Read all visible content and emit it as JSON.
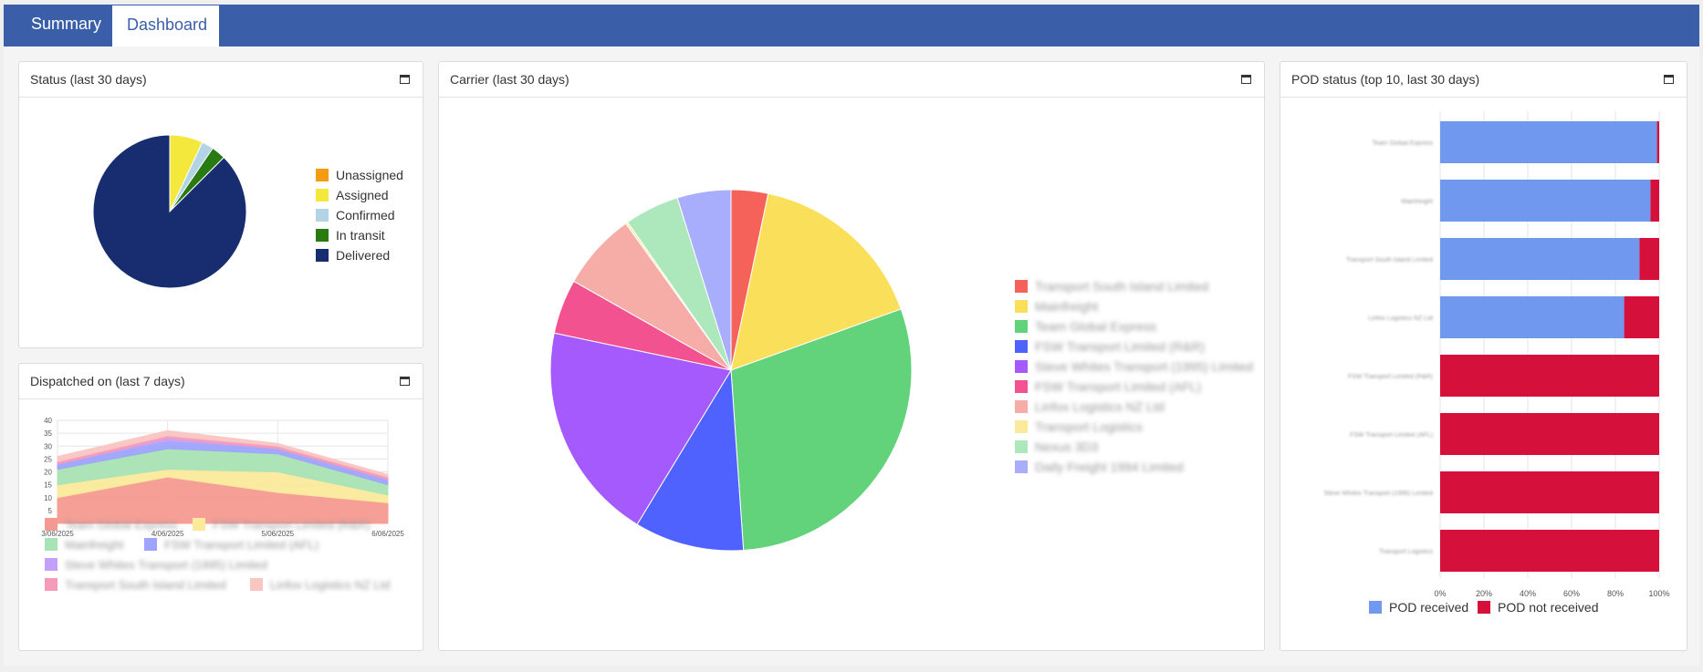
{
  "tabs": [
    {
      "label": "Summary"
    },
    {
      "label": "Dashboard"
    }
  ],
  "panels": {
    "status": {
      "title": "Status (last 30 days)"
    },
    "carrier": {
      "title": "Carrier (last 30 days)"
    },
    "pod": {
      "title": "POD status (top 10, last 30 days)"
    },
    "dispatched": {
      "title": "Dispatched on (last 7 days)"
    }
  },
  "colors": {
    "brand": "#3a5ea8",
    "pod_received": "#6f98ee",
    "pod_not_received": "#d5103a"
  },
  "chart_data": [
    {
      "id": "status",
      "type": "pie",
      "series": [
        {
          "name": "Unassigned",
          "value": 0,
          "color": "#f39c12"
        },
        {
          "name": "Assigned",
          "value": 7,
          "color": "#f3e83b"
        },
        {
          "name": "Confirmed",
          "value": 2.5,
          "color": "#b2d4e6"
        },
        {
          "name": "In transit",
          "value": 3,
          "color": "#2a7a12"
        },
        {
          "name": "Delivered",
          "value": 87.5,
          "color": "#172d70"
        }
      ],
      "legend": "right"
    },
    {
      "id": "carrier",
      "type": "pie",
      "series": [
        {
          "name": "Transport South Island Limited",
          "value": 3.3,
          "color": "#f5625a"
        },
        {
          "name": "Mainfreight",
          "value": 16.2,
          "color": "#fae05a"
        },
        {
          "name": "Team Global Express",
          "value": 29.4,
          "color": "#62d37b"
        },
        {
          "name": "FSW Transport Limited (R&R)",
          "value": 9.8,
          "color": "#4f62fe"
        },
        {
          "name": "Steve Whites Transport (1995) Limited",
          "value": 19.6,
          "color": "#a45afc"
        },
        {
          "name": "FSW Transport Limited (AFL)",
          "value": 4.9,
          "color": "#f25390"
        },
        {
          "name": "Linfox Logistics NZ Ltd",
          "value": 6.9,
          "color": "#f6aca7"
        },
        {
          "name": "Transport Logistics",
          "value": 0.2,
          "color": "#fbea9c"
        },
        {
          "name": "Nexus 3D3",
          "value": 4.9,
          "color": "#ade8bd"
        },
        {
          "name": "Daily Freight 1994 Limited",
          "value": 4.8,
          "color": "#a9aefc"
        }
      ],
      "legend": "right"
    },
    {
      "id": "pod",
      "type": "bar",
      "orientation": "horizontal",
      "stacked": true,
      "categories": [
        "Team Global Express",
        "Mainfreight",
        "Transport South Island Limited",
        "Linfox Logistics NZ Ltd",
        "FSW Transport Limited (R&R)",
        "FSW Transport Limited (AFL)",
        "Steve Whites Transport (1995) Limited",
        "Transport Logistics"
      ],
      "series": [
        {
          "name": "POD received",
          "values": [
            99,
            96,
            91,
            84,
            0,
            0,
            0,
            0
          ],
          "color": "#6f98ee"
        },
        {
          "name": "POD not received",
          "values": [
            1,
            4,
            9,
            16,
            100,
            100,
            100,
            100
          ],
          "color": "#d5103a"
        }
      ],
      "xticks": [
        "0%",
        "20%",
        "40%",
        "60%",
        "80%",
        "100%"
      ],
      "xlim": [
        0,
        100
      ],
      "grid": true,
      "legend": "bottom"
    },
    {
      "id": "dispatched",
      "type": "area",
      "stacked": true,
      "x": [
        "3/06/2025",
        "4/06/2025",
        "5/06/2025",
        "6/06/2025"
      ],
      "yticks": [
        0,
        5,
        10,
        15,
        20,
        25,
        30,
        35,
        40
      ],
      "ylim": [
        0,
        40
      ],
      "series": [
        {
          "name": "Team Global Express",
          "values": [
            10,
            18,
            12,
            8
          ],
          "color": "#f59a92"
        },
        {
          "name": "FSW Transport Limited (R&R)",
          "values": [
            5,
            3,
            8,
            3
          ],
          "color": "#fbea9c"
        },
        {
          "name": "Mainfreight",
          "values": [
            6,
            8,
            7,
            4
          ],
          "color": "#a8e3b5"
        },
        {
          "name": "FSW Transport Limited (AFL)",
          "values": [
            2,
            3,
            2,
            2
          ],
          "color": "#9ea4fb"
        },
        {
          "name": "Steve Whites Transport (1995) Limited",
          "values": [
            0,
            1,
            0,
            0
          ],
          "color": "#c3a0fa"
        },
        {
          "name": "Transport South Island Limited",
          "values": [
            1,
            1,
            1,
            1
          ],
          "color": "#f59ab9"
        },
        {
          "name": "Linfox Logistics NZ Ltd",
          "values": [
            2,
            2,
            1,
            1
          ],
          "color": "#f9c6c2"
        }
      ],
      "grid": true,
      "legend": "bottom"
    }
  ]
}
